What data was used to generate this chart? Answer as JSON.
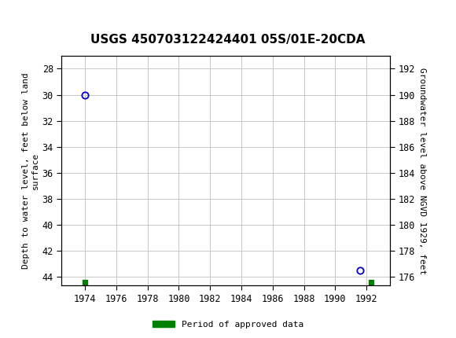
{
  "title": "USGS 450703122424401 05S/01E-20CDA",
  "ylabel_left": "Depth to water level, feet below land\nsurface",
  "ylabel_right": "Groundwater level above NGVD 1929, feet",
  "xlim": [
    1972.5,
    1993.5
  ],
  "ylim_left_top": 27.0,
  "ylim_left_bottom": 44.7,
  "ylim_right_top": 193.0,
  "ylim_right_bottom": 175.3,
  "xticks": [
    1974,
    1976,
    1978,
    1980,
    1982,
    1984,
    1986,
    1988,
    1990,
    1992
  ],
  "yticks_left": [
    28,
    30,
    32,
    34,
    36,
    38,
    40,
    42,
    44
  ],
  "yticks_right": [
    192,
    190,
    188,
    186,
    184,
    182,
    180,
    178,
    176
  ],
  "data_points": [
    {
      "x": 1974.0,
      "y_left": 30.0
    },
    {
      "x": 1991.6,
      "y_left": 43.5
    }
  ],
  "approved_markers": [
    {
      "x": 1974.0,
      "y_left": 44.45
    },
    {
      "x": 1992.3,
      "y_left": 44.45
    }
  ],
  "point_color": "#0000cc",
  "legend_label": "Period of approved data",
  "legend_color": "#008000",
  "background_color": "#ffffff",
  "plot_bg_color": "#ffffff",
  "grid_color": "#c8c8c8",
  "header_color": "#006633",
  "title_fontsize": 11,
  "axis_fontsize": 8,
  "tick_fontsize": 8.5
}
